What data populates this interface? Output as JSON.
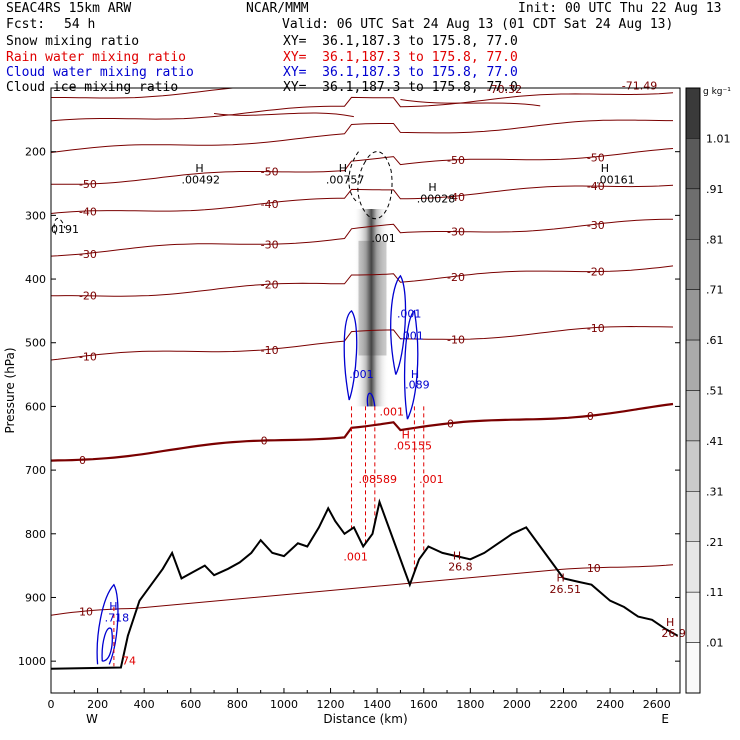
{
  "header": {
    "model": "SEAC4RS 15km ARW",
    "org": "NCAR/MMM",
    "init": "Init: 00 UTC Thu 22 Aug 13",
    "fcst_label": "Fcst:",
    "fcst_value": "54 h",
    "valid": "Valid: 06 UTC Sat 24 Aug 13 (01 CDT Sat 24 Aug 13)"
  },
  "fields": [
    {
      "name": "Snow mixing ratio",
      "xy": "XY=  36.1,187.3 to 175.8, 77.0",
      "color": "#000000"
    },
    {
      "name": "Rain water mixing ratio",
      "xy": "XY=  36.1,187.3 to 175.8, 77.0",
      "color": "#e00000"
    },
    {
      "name": "Cloud water mixing ratio",
      "xy": "XY=  36.1,187.3 to 175.8, 77.0",
      "color": "#0000d0"
    },
    {
      "name": "Cloud ice mixing ratio",
      "xy": "XY=  36.1,187.3 to 175.8, 77.0",
      "color": "#000000"
    }
  ],
  "chart_data": {
    "type": "cross-section",
    "xlabel": "Distance (km)",
    "ylabel": "Pressure (hPa)",
    "x_ticks": [
      0,
      200,
      400,
      600,
      800,
      1000,
      1200,
      1400,
      1600,
      1800,
      2000,
      2200,
      2400,
      2600
    ],
    "y_ticks": [
      200,
      300,
      400,
      500,
      600,
      700,
      800,
      900,
      1000
    ],
    "xlim": [
      0,
      2700
    ],
    "ylim": [
      1050,
      100
    ],
    "x_end_labels": {
      "left": "W",
      "right": "E"
    },
    "colorbar": {
      "unit": "g kg⁻¹",
      "levels": [
        "1.01",
        ".91",
        ".81",
        ".71",
        ".61",
        ".51",
        ".41",
        ".31",
        ".21",
        ".11",
        ".01"
      ],
      "colors": [
        "#5a5a5a",
        "#6e6e6e",
        "#828282",
        "#969696",
        "#aaaaaa",
        "#bababa",
        "#cacaca",
        "#d8d8d8",
        "#e6e6e6",
        "#f0f0f0",
        "#fafafa"
      ]
    },
    "temperature_contours": [
      {
        "value": 10,
        "pressure_at_left": 930,
        "label": "10"
      },
      {
        "value": 0,
        "pressure_at_left": 685,
        "label": "0"
      },
      {
        "value": -10,
        "pressure_at_left": 525,
        "label": "-10"
      },
      {
        "value": -20,
        "pressure_at_left": 430,
        "label": "-20"
      },
      {
        "value": -30,
        "pressure_at_left": 360,
        "label": "-30"
      },
      {
        "value": -40,
        "pressure_at_left": 300,
        "label": "-40"
      },
      {
        "value": -50,
        "pressure_at_left": 250,
        "label": "-50"
      }
    ],
    "terrain_km_hpa": [
      [
        0,
        1012
      ],
      [
        300,
        1010
      ],
      [
        330,
        960
      ],
      [
        380,
        905
      ],
      [
        430,
        880
      ],
      [
        480,
        855
      ],
      [
        520,
        830
      ],
      [
        560,
        870
      ],
      [
        610,
        860
      ],
      [
        660,
        850
      ],
      [
        700,
        865
      ],
      [
        760,
        855
      ],
      [
        810,
        845
      ],
      [
        860,
        830
      ],
      [
        900,
        810
      ],
      [
        950,
        830
      ],
      [
        1000,
        835
      ],
      [
        1060,
        815
      ],
      [
        1100,
        820
      ],
      [
        1150,
        790
      ],
      [
        1190,
        760
      ],
      [
        1220,
        780
      ],
      [
        1260,
        800
      ],
      [
        1300,
        790
      ],
      [
        1340,
        820
      ],
      [
        1380,
        800
      ],
      [
        1410,
        750
      ],
      [
        1440,
        780
      ],
      [
        1480,
        820
      ],
      [
        1520,
        860
      ],
      [
        1540,
        880
      ],
      [
        1580,
        840
      ],
      [
        1620,
        820
      ],
      [
        1680,
        830
      ],
      [
        1740,
        835
      ],
      [
        1800,
        840
      ],
      [
        1860,
        830
      ],
      [
        1920,
        815
      ],
      [
        1980,
        800
      ],
      [
        2040,
        790
      ],
      [
        2100,
        820
      ],
      [
        2160,
        850
      ],
      [
        2200,
        870
      ],
      [
        2260,
        875
      ],
      [
        2320,
        880
      ],
      [
        2400,
        905
      ],
      [
        2460,
        915
      ],
      [
        2520,
        930
      ],
      [
        2580,
        935
      ],
      [
        2640,
        950
      ],
      [
        2690,
        960
      ]
    ],
    "annotations": [
      {
        "text": "-70.32",
        "x_km": 1870,
        "p": 108,
        "color": "#7a0000"
      },
      {
        "text": "-71.49",
        "x_km": 2450,
        "p": 102,
        "color": "#7a0000"
      },
      {
        "text": "H",
        "x_km": 620,
        "p": 232,
        "color": "#000"
      },
      {
        "text": ".00492",
        "x_km": 560,
        "p": 250,
        "color": "#000"
      },
      {
        "text": "H",
        "x_km": 1235,
        "p": 232,
        "color": "#000"
      },
      {
        "text": ".00757",
        "x_km": 1180,
        "p": 250,
        "color": "#000"
      },
      {
        "text": "H",
        "x_km": 1620,
        "p": 262,
        "color": "#000"
      },
      {
        "text": ".00028",
        "x_km": 1570,
        "p": 280,
        "color": "#000"
      },
      {
        "text": "H",
        "x_km": 2360,
        "p": 232,
        "color": "#000"
      },
      {
        "text": ".00161",
        "x_km": 2340,
        "p": 250,
        "color": "#000"
      },
      {
        "text": "0191",
        "x_km": 0,
        "p": 328,
        "color": "#000"
      },
      {
        "text": ".001",
        "x_km": 1375,
        "p": 342,
        "color": "#000"
      },
      {
        "text": ".001",
        "x_km": 1485,
        "p": 460,
        "color": "#0000d0"
      },
      {
        "text": ".001",
        "x_km": 1495,
        "p": 495,
        "color": "#0000d0"
      },
      {
        "text": ".001",
        "x_km": 1280,
        "p": 555,
        "color": "#0000d0"
      },
      {
        "text": "H",
        "x_km": 1545,
        "p": 555,
        "color": "#0000d0"
      },
      {
        "text": ".089",
        "x_km": 1520,
        "p": 572,
        "color": "#0000d0"
      },
      {
        "text": ".001",
        "x_km": 1410,
        "p": 614,
        "color": "#e00000"
      },
      {
        "text": "H",
        "x_km": 1505,
        "p": 650,
        "color": "#e00000"
      },
      {
        "text": ".05155",
        "x_km": 1470,
        "p": 668,
        "color": "#e00000"
      },
      {
        "text": ".08589",
        "x_km": 1320,
        "p": 720,
        "color": "#e00000"
      },
      {
        "text": ".001",
        "x_km": 1580,
        "p": 720,
        "color": "#e00000"
      },
      {
        "text": ".001",
        "x_km": 1255,
        "p": 842,
        "color": "#e00000"
      },
      {
        "text": "H",
        "x_km": 1725,
        "p": 840,
        "color": "#7a0000"
      },
      {
        "text": "26.8",
        "x_km": 1705,
        "p": 858,
        "color": "#7a0000"
      },
      {
        "text": "H",
        "x_km": 2170,
        "p": 875,
        "color": "#7a0000"
      },
      {
        "text": "26.51",
        "x_km": 2140,
        "p": 893,
        "color": "#7a0000"
      },
      {
        "text": "H",
        "x_km": 2640,
        "p": 945,
        "color": "#7a0000"
      },
      {
        "text": "26.9",
        "x_km": 2620,
        "p": 962,
        "color": "#7a0000"
      },
      {
        "text": "H",
        "x_km": 250,
        "p": 920,
        "color": "#0000d0"
      },
      {
        "text": ".718",
        "x_km": 230,
        "p": 938,
        "color": "#0000d0"
      },
      {
        "text": "74",
        "x_km": 305,
        "p": 1005,
        "color": "#e00000"
      }
    ]
  }
}
